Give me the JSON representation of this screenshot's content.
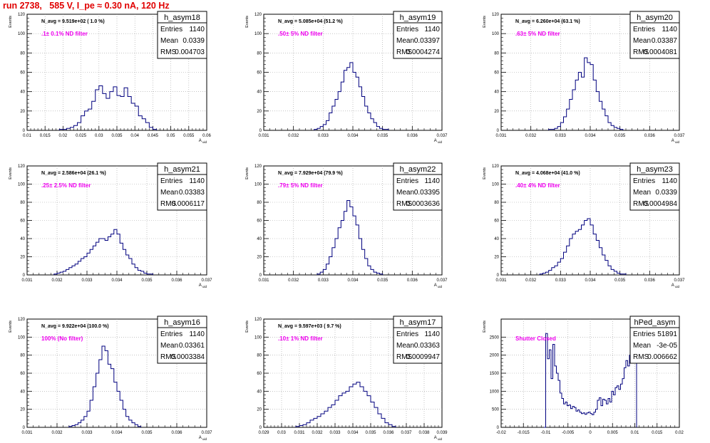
{
  "page_title": "run 2738,   585 V, I_pe ≈ 0.30 nA, 120 Hz",
  "colors": {
    "hist": "#00007f",
    "filter_label": "#ee00ee",
    "title": "#e00000",
    "grid": "#a0a0a0"
  },
  "chart_data": [
    {
      "type": "histogram",
      "name": "h_asym18",
      "stats": {
        "entries_label": "Entries",
        "entries": "1140",
        "mean_label": "Mean",
        "mean": "0.0339",
        "rms_label": "RMS",
        "rms": "0.004703"
      },
      "navg": "N_avg = 9.519e+02 ( 1.0 %)",
      "filter": ".1± 0.1% ND filter",
      "ylabel": "Events",
      "xlabel": "A_uid",
      "xlim": [
        0.01,
        0.06
      ],
      "ylim": [
        0,
        120
      ],
      "xticks": [
        "0.01",
        "0.015",
        "0.02",
        "0.025",
        "0.03",
        "0.035",
        "0.04",
        "0.045",
        "0.05",
        "0.055",
        "0.06"
      ],
      "yticks": [
        "0",
        "20",
        "40",
        "60",
        "80",
        "100",
        "120"
      ],
      "x": [
        0.0195,
        0.0205,
        0.0215,
        0.0225,
        0.0235,
        0.0245,
        0.0255,
        0.0265,
        0.0275,
        0.0285,
        0.0295,
        0.0305,
        0.0315,
        0.0325,
        0.0335,
        0.0345,
        0.0355,
        0.0365,
        0.0375,
        0.0385,
        0.0395,
        0.0405,
        0.0415,
        0.0425,
        0.0435,
        0.0445,
        0.0455
      ],
      "values": [
        1,
        1,
        2,
        3,
        5,
        8,
        15,
        20,
        22,
        30,
        42,
        46,
        38,
        33,
        40,
        45,
        36,
        35,
        44,
        35,
        28,
        25,
        15,
        12,
        8,
        3,
        1
      ]
    },
    {
      "type": "histogram",
      "name": "h_asym19",
      "stats": {
        "entries_label": "Entries",
        "entries": "1140",
        "mean_label": "Mean",
        "mean": "0.03397",
        "rms_label": "RMS",
        "rms": "0.0004274"
      },
      "navg": "N_avg = 5.085e+04 (51.2 %)",
      "filter": ".50± 5% ND filter",
      "ylabel": "Events",
      "xlabel": "A_uid",
      "xlim": [
        0.031,
        0.037
      ],
      "ylim": [
        0,
        120
      ],
      "xticks": [
        "0.031",
        "0.032",
        "0.033",
        "0.034",
        "0.035",
        "0.036",
        "0.037"
      ],
      "yticks": [
        "0",
        "20",
        "40",
        "60",
        "80",
        "100",
        "120"
      ],
      "x": [
        0.03275,
        0.03285,
        0.03295,
        0.03305,
        0.03315,
        0.03325,
        0.03335,
        0.03345,
        0.03355,
        0.03365,
        0.03375,
        0.03385,
        0.03395,
        0.03405,
        0.03415,
        0.03425,
        0.03435,
        0.03445,
        0.03455,
        0.03465,
        0.03475,
        0.03485,
        0.03495,
        0.03505,
        0.03515
      ],
      "values": [
        1,
        2,
        4,
        6,
        10,
        18,
        25,
        32,
        40,
        50,
        62,
        65,
        70,
        60,
        55,
        45,
        35,
        25,
        18,
        12,
        8,
        4,
        2,
        1,
        1
      ]
    },
    {
      "type": "histogram",
      "name": "h_asym20",
      "stats": {
        "entries_label": "Entries",
        "entries": "1140",
        "mean_label": "Mean",
        "mean": "0.03387",
        "rms_label": "RMS",
        "rms": "0.0004081"
      },
      "navg": "N_avg = 6.260e+04 (63.1 %)",
      "filter": ".63± 5% ND filter",
      "ylabel": "Events",
      "xlabel": "A_uid",
      "xlim": [
        0.031,
        0.037
      ],
      "ylim": [
        0,
        120
      ],
      "xticks": [
        "0.031",
        "0.032",
        "0.033",
        "0.034",
        "0.035",
        "0.036",
        "0.037"
      ],
      "yticks": [
        "0",
        "20",
        "40",
        "60",
        "80",
        "100",
        "120"
      ],
      "x": [
        0.03265,
        0.03275,
        0.03285,
        0.03295,
        0.03305,
        0.03315,
        0.03325,
        0.03335,
        0.03345,
        0.03355,
        0.03365,
        0.03375,
        0.03385,
        0.03395,
        0.03405,
        0.03415,
        0.03425,
        0.03435,
        0.03445,
        0.03455,
        0.03465,
        0.03475,
        0.03485,
        0.03495,
        0.03505
      ],
      "values": [
        1,
        1,
        2,
        4,
        8,
        14,
        22,
        32,
        42,
        52,
        60,
        55,
        75,
        70,
        68,
        52,
        40,
        30,
        22,
        15,
        8,
        5,
        3,
        2,
        1
      ]
    },
    {
      "type": "histogram",
      "name": "h_asym21",
      "stats": {
        "entries_label": "Entries",
        "entries": "1140",
        "mean_label": "Mean",
        "mean": "0.03383",
        "rms_label": "RMS",
        "rms": "0.0006117"
      },
      "navg": "N_avg = 2.586e+04 (26.1 %)",
      "filter": ".25± 2.5% ND filter",
      "ylabel": "Events",
      "xlabel": "A_uid",
      "xlim": [
        0.031,
        0.037
      ],
      "ylim": [
        0,
        120
      ],
      "xticks": [
        "0.031",
        "0.032",
        "0.033",
        "0.034",
        "0.035",
        "0.036",
        "0.037"
      ],
      "yticks": [
        "0",
        "20",
        "40",
        "60",
        "80",
        "100",
        "120"
      ],
      "x": [
        0.03195,
        0.03205,
        0.03215,
        0.03225,
        0.03235,
        0.03245,
        0.03255,
        0.03265,
        0.03275,
        0.03285,
        0.03295,
        0.03305,
        0.03315,
        0.03325,
        0.03335,
        0.03345,
        0.03355,
        0.03365,
        0.03375,
        0.03385,
        0.03395,
        0.03405,
        0.03415,
        0.03425,
        0.03435,
        0.03445,
        0.03455,
        0.03465,
        0.03475,
        0.03485,
        0.03495,
        0.03505,
        0.03515
      ],
      "values": [
        1,
        2,
        3,
        4,
        6,
        8,
        10,
        12,
        15,
        18,
        20,
        24,
        28,
        32,
        36,
        40,
        40,
        38,
        42,
        45,
        50,
        45,
        35,
        28,
        22,
        18,
        12,
        8,
        5,
        4,
        2,
        1,
        1
      ]
    },
    {
      "type": "histogram",
      "name": "h_asym22",
      "stats": {
        "entries_label": "Entries",
        "entries": "1140",
        "mean_label": "Mean",
        "mean": "0.03395",
        "rms_label": "RMS",
        "rms": "0.0003636"
      },
      "navg": "N_avg = 7.929e+04 (79.9 %)",
      "filter": ".79± 5% ND filter",
      "ylabel": "Events",
      "xlabel": "A_uid",
      "xlim": [
        0.031,
        0.037
      ],
      "ylim": [
        0,
        120
      ],
      "xticks": [
        "0.031",
        "0.032",
        "0.033",
        "0.034",
        "0.035",
        "0.036",
        "0.037"
      ],
      "yticks": [
        "0",
        "20",
        "40",
        "60",
        "80",
        "100",
        "120"
      ],
      "x": [
        0.03285,
        0.03295,
        0.03305,
        0.03315,
        0.03325,
        0.03335,
        0.03345,
        0.03355,
        0.03365,
        0.03375,
        0.03385,
        0.03395,
        0.03405,
        0.03415,
        0.03425,
        0.03435,
        0.03445,
        0.03455,
        0.03465,
        0.03475,
        0.03485,
        0.03495
      ],
      "values": [
        1,
        3,
        6,
        12,
        20,
        30,
        40,
        52,
        60,
        70,
        82,
        75,
        65,
        55,
        40,
        28,
        18,
        10,
        6,
        3,
        2,
        1
      ]
    },
    {
      "type": "histogram",
      "name": "h_asym23",
      "stats": {
        "entries_label": "Entries",
        "entries": "1140",
        "mean_label": "Mean",
        "mean": "0.0339",
        "rms_label": "RMS",
        "rms": "0.0004984"
      },
      "navg": "N_avg = 4.068e+04 (41.0 %)",
      "filter": ".40± 4% ND filter",
      "ylabel": "Events",
      "xlabel": "A_uid",
      "xlim": [
        0.031,
        0.037
      ],
      "ylim": [
        0,
        120
      ],
      "xticks": [
        "0.031",
        "0.032",
        "0.033",
        "0.034",
        "0.035",
        "0.036",
        "0.037"
      ],
      "yticks": [
        "0",
        "20",
        "40",
        "60",
        "80",
        "100",
        "120"
      ],
      "x": [
        0.03235,
        0.03245,
        0.03255,
        0.03265,
        0.03275,
        0.03285,
        0.03295,
        0.03305,
        0.03315,
        0.03325,
        0.03335,
        0.03345,
        0.03355,
        0.03365,
        0.03375,
        0.03385,
        0.03395,
        0.03405,
        0.03415,
        0.03425,
        0.03435,
        0.03445,
        0.03455,
        0.03465,
        0.03475,
        0.03485,
        0.03495,
        0.03505,
        0.03515
      ],
      "values": [
        1,
        2,
        3,
        5,
        8,
        10,
        14,
        18,
        25,
        32,
        40,
        45,
        48,
        50,
        55,
        60,
        62,
        55,
        45,
        38,
        30,
        22,
        16,
        10,
        6,
        4,
        2,
        1,
        1
      ]
    },
    {
      "type": "histogram",
      "name": "h_asym16",
      "stats": {
        "entries_label": "Entries",
        "entries": "1140",
        "mean_label": "Mean",
        "mean": "0.03361",
        "rms_label": "RMS",
        "rms": "0.0003384"
      },
      "navg": "N_avg = 9.922e+04 (100.0 %)",
      "filter": "100% (No filter)",
      "ylabel": "Events",
      "xlabel": "A_uid",
      "xlim": [
        0.031,
        0.037
      ],
      "ylim": [
        0,
        120
      ],
      "xticks": [
        "0.031",
        "0.032",
        "0.033",
        "0.034",
        "0.035",
        "0.036",
        "0.037"
      ],
      "yticks": [
        "0",
        "20",
        "40",
        "60",
        "80",
        "100",
        "120"
      ],
      "x": [
        0.03245,
        0.03255,
        0.03265,
        0.03275,
        0.03285,
        0.03295,
        0.03305,
        0.03315,
        0.03325,
        0.03335,
        0.03345,
        0.03355,
        0.03365,
        0.03375,
        0.03385,
        0.03395,
        0.03405,
        0.03415,
        0.03425,
        0.03435,
        0.03445,
        0.03455,
        0.03465,
        0.03475
      ],
      "values": [
        1,
        2,
        3,
        5,
        8,
        12,
        18,
        30,
        45,
        60,
        75,
        90,
        85,
        70,
        65,
        50,
        40,
        30,
        20,
        12,
        8,
        5,
        3,
        1
      ]
    },
    {
      "type": "histogram",
      "name": "h_asym17",
      "stats": {
        "entries_label": "Entries",
        "entries": "1140",
        "mean_label": "Mean",
        "mean": "0.03363",
        "rms_label": "RMS",
        "rms": "0.0009947"
      },
      "navg": "N_avg = 9.597e+03 ( 9.7 %)",
      "filter": ".10± 1% ND filter",
      "ylabel": "Events",
      "xlabel": "A_uid",
      "xlim": [
        0.029,
        0.039
      ],
      "ylim": [
        0,
        120
      ],
      "xticks": [
        "0.029",
        "0.03",
        "0.031",
        "0.032",
        "0.033",
        "0.034",
        "0.035",
        "0.036",
        "0.037",
        "0.038",
        "0.039"
      ],
      "yticks": [
        "0",
        "20",
        "40",
        "60",
        "80",
        "100",
        "120"
      ],
      "x": [
        0.0309,
        0.0311,
        0.0313,
        0.0315,
        0.0317,
        0.0319,
        0.0321,
        0.0323,
        0.0325,
        0.0327,
        0.0329,
        0.0331,
        0.0333,
        0.0335,
        0.0337,
        0.0339,
        0.0341,
        0.0343,
        0.0345,
        0.0347,
        0.0349,
        0.0351,
        0.0353,
        0.0355,
        0.0357,
        0.0359,
        0.0361,
        0.0363
      ],
      "values": [
        1,
        2,
        3,
        5,
        8,
        10,
        12,
        15,
        18,
        22,
        25,
        30,
        35,
        38,
        40,
        45,
        48,
        50,
        45,
        40,
        35,
        28,
        22,
        15,
        10,
        5,
        3,
        1
      ]
    },
    {
      "type": "histogram",
      "name": "hPed_asym",
      "stats": {
        "entries_label": "Entries",
        "entries": "51891",
        "mean_label": "Mean",
        "mean": "-3e-05",
        "rms_label": "RMS",
        "rms": "0.006662"
      },
      "navg": "",
      "filter": "Shutter Closed",
      "ylabel": "Events",
      "xlabel": "",
      "xlim": [
        -0.02,
        0.02
      ],
      "ylim": [
        0,
        3000
      ],
      "xticks": [
        "-0.02",
        "-0.015",
        "-0.01",
        "-0.005",
        "0",
        "0.005",
        "0.01",
        "0.015",
        "0.02"
      ],
      "yticks": [
        "0",
        "500",
        "1000",
        "1500",
        "2000",
        "2500"
      ],
      "x": [
        -0.0102,
        -0.0098,
        -0.0094,
        -0.009,
        -0.0086,
        -0.0082,
        -0.0078,
        -0.0074,
        -0.007,
        -0.0066,
        -0.0062,
        -0.0058,
        -0.0054,
        -0.005,
        -0.0046,
        -0.0042,
        -0.0038,
        -0.0034,
        -0.003,
        -0.0026,
        -0.0022,
        -0.0018,
        -0.0014,
        -0.001,
        -0.0006,
        -0.0002,
        0.0002,
        0.0006,
        0.001,
        0.0014,
        0.0018,
        0.0022,
        0.0026,
        0.003,
        0.0034,
        0.0038,
        0.0042,
        0.0046,
        0.005,
        0.0054,
        0.0058,
        0.0062,
        0.0066,
        0.007,
        0.0074,
        0.0078,
        0.0082,
        0.0086,
        0.009,
        0.0094,
        0.0098,
        0.0102
      ],
      "values": [
        0,
        2600,
        1900,
        2150,
        1350,
        2300,
        1700,
        1500,
        1300,
        950,
        800,
        650,
        700,
        600,
        620,
        520,
        580,
        550,
        450,
        480,
        420,
        380,
        400,
        360,
        400,
        420,
        380,
        350,
        420,
        500,
        750,
        820,
        600,
        780,
        750,
        650,
        800,
        700,
        1000,
        900,
        1100,
        1150,
        1050,
        1200,
        1350,
        1650,
        1850,
        1700,
        2000,
        2650,
        3000,
        2400
      ]
    }
  ]
}
